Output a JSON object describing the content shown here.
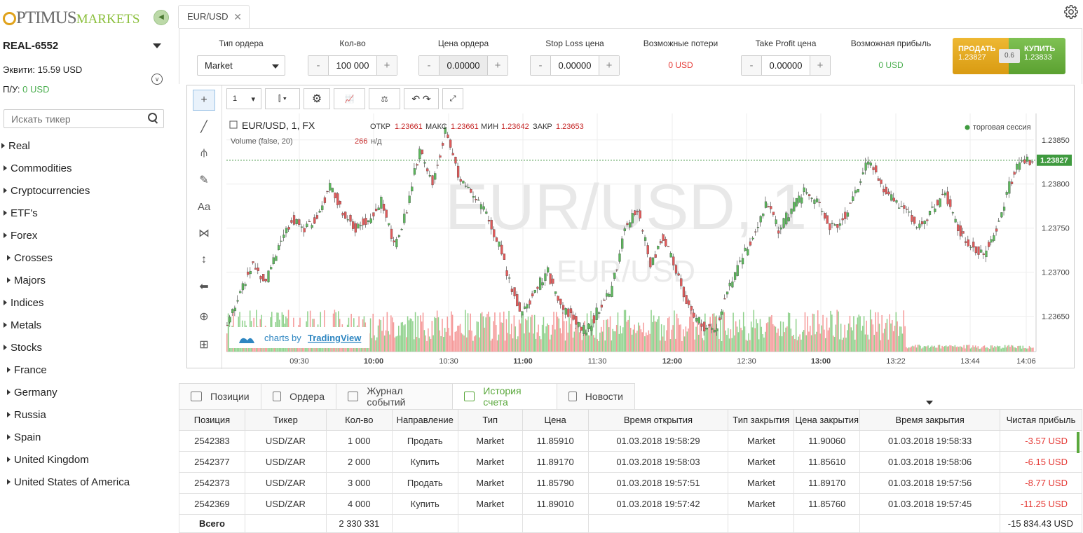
{
  "brand": {
    "logo_part1": "PTIMUS",
    "logo_part2": "MARKETS"
  },
  "account": {
    "name": "REAL-6552",
    "equity_label": "Эквити:",
    "equity_value": "15.59 USD",
    "pnl_label": "П/У:",
    "pnl_value": "0 USD"
  },
  "search": {
    "placeholder": "Искать тикер"
  },
  "tree": [
    {
      "label": "Real",
      "indent": 0
    },
    {
      "label": "Commodities",
      "indent": 1
    },
    {
      "label": "Cryptocurrencies",
      "indent": 1
    },
    {
      "label": "ETF's",
      "indent": 1
    },
    {
      "label": "Forex",
      "indent": 1
    },
    {
      "label": "Crosses",
      "indent": 2
    },
    {
      "label": "Majors",
      "indent": 2
    },
    {
      "label": "Indices",
      "indent": 1
    },
    {
      "label": "Metals",
      "indent": 1
    },
    {
      "label": "Stocks",
      "indent": 1
    },
    {
      "label": "France",
      "indent": 2
    },
    {
      "label": "Germany",
      "indent": 2
    },
    {
      "label": "Russia",
      "indent": 2
    },
    {
      "label": "Spain",
      "indent": 2
    },
    {
      "label": "United Kingdom",
      "indent": 2
    },
    {
      "label": "United States of America",
      "indent": 2
    }
  ],
  "tab": {
    "label": "EUR/USD"
  },
  "order": {
    "type_label": "Тип ордера",
    "type_value": "Market",
    "qty_label": "Кол-во",
    "qty_value": "100 000",
    "price_label": "Цена ордера",
    "price_value": "0.00000",
    "sl_label": "Stop Loss цена",
    "sl_value": "0.00000",
    "loss_label": "Возможные потери",
    "loss_value": "0 USD",
    "tp_label": "Take Profit цена",
    "tp_value": "0.00000",
    "profit_label": "Возможная прибыль",
    "profit_value": "0 USD",
    "sell_label": "ПРОДАТЬ",
    "sell_price": "1.23827",
    "buy_label": "КУПИТЬ",
    "buy_price": "1.23833",
    "spread": "0.6",
    "minus": "-",
    "plus": "+"
  },
  "chart_toolbar": {
    "interval": "1"
  },
  "chart_data": {
    "type": "candlestick",
    "symbol_line": "EUR/USD, 1, FX",
    "ohlc": {
      "o_label": "ОТКР",
      "o": "1.23661",
      "h_label": "МАКС",
      "h": "1.23661",
      "l_label": "МИН",
      "l": "1.23642",
      "c_label": "ЗАКР",
      "c": "1.23653"
    },
    "volume_line": "Volume (false, 20)",
    "volume_value": "266",
    "volume_na": "н/д",
    "session": "торговая сессия",
    "watermark_big": "EUR/USD, 1",
    "watermark_small": "EUR/USD",
    "branding_prefix": "charts by",
    "branding_name": "TradingView",
    "last_price": "1.23827",
    "ylim": [
      1.2361,
      1.2388
    ],
    "yticks": [
      "1.23850",
      "1.23800",
      "1.23750",
      "1.23700",
      "1.23650"
    ],
    "xticks": [
      "09:30",
      "10:00",
      "10:30",
      "11:00",
      "11:30",
      "12:00",
      "12:30",
      "13:00",
      "13:22",
      "13:44",
      "14:06"
    ],
    "bold_xticks": [
      "10:00",
      "11:00",
      "12:00",
      "13:00"
    ],
    "close_path": [
      [
        0,
        1.2364
      ],
      [
        10,
        1.2368
      ],
      [
        20,
        1.2371
      ],
      [
        30,
        1.2369
      ],
      [
        40,
        1.2373
      ],
      [
        50,
        1.2376
      ],
      [
        60,
        1.2375
      ],
      [
        70,
        1.2376
      ],
      [
        80,
        1.238
      ],
      [
        90,
        1.2377
      ],
      [
        100,
        1.2375
      ],
      [
        110,
        1.2376
      ],
      [
        120,
        1.2378
      ],
      [
        130,
        1.2373
      ],
      [
        140,
        1.2377
      ],
      [
        150,
        1.2384
      ],
      [
        160,
        1.238
      ],
      [
        170,
        1.2386
      ],
      [
        180,
        1.2381
      ],
      [
        190,
        1.2379
      ],
      [
        200,
        1.2377
      ],
      [
        210,
        1.2374
      ],
      [
        220,
        1.2369
      ],
      [
        230,
        1.2365
      ],
      [
        240,
        1.2368
      ],
      [
        250,
        1.237
      ],
      [
        260,
        1.2366
      ],
      [
        270,
        1.2365
      ],
      [
        280,
        1.2363
      ],
      [
        290,
        1.2366
      ],
      [
        300,
        1.2368
      ],
      [
        310,
        1.2375
      ],
      [
        320,
        1.2377
      ],
      [
        330,
        1.2371
      ],
      [
        340,
        1.2374
      ],
      [
        350,
        1.237
      ],
      [
        360,
        1.2366
      ],
      [
        370,
        1.2364
      ],
      [
        380,
        1.2363
      ],
      [
        390,
        1.2368
      ],
      [
        400,
        1.2371
      ],
      [
        410,
        1.2374
      ],
      [
        420,
        1.2378
      ],
      [
        430,
        1.2375
      ],
      [
        440,
        1.2377
      ],
      [
        450,
        1.2379
      ],
      [
        460,
        1.2378
      ],
      [
        470,
        1.2375
      ],
      [
        480,
        1.2376
      ],
      [
        490,
        1.2379
      ],
      [
        500,
        1.2383
      ],
      [
        510,
        1.238
      ],
      [
        520,
        1.2378
      ],
      [
        530,
        1.2377
      ],
      [
        540,
        1.2375
      ],
      [
        550,
        1.2377
      ],
      [
        560,
        1.2379
      ],
      [
        570,
        1.2375
      ],
      [
        580,
        1.2373
      ],
      [
        590,
        1.2372
      ],
      [
        600,
        1.2375
      ],
      [
        610,
        1.238
      ],
      [
        620,
        1.2383
      ],
      [
        630,
        1.2382
      ]
    ]
  },
  "bottom_tabs": [
    "Позиции",
    "Ордера",
    "Журнал событий",
    "История счета",
    "Новости"
  ],
  "table": {
    "columns": [
      "Позиция",
      "Тикер",
      "Кол-во",
      "Направление",
      "Тип",
      "Цена",
      "Время открытия",
      "Тип закрытия",
      "Цена закрытия",
      "Время закрытия",
      "Чистая прибыль"
    ],
    "rows": [
      [
        "2542383",
        "USD/ZAR",
        "1 000",
        "Продать",
        "Market",
        "11.85910",
        "01.03.2018 19:58:29",
        "Market",
        "11.90060",
        "01.03.2018 19:58:33",
        "-3.57 USD"
      ],
      [
        "2542377",
        "USD/ZAR",
        "2 000",
        "Купить",
        "Market",
        "11.89170",
        "01.03.2018 19:58:03",
        "Market",
        "11.85610",
        "01.03.2018 19:58:06",
        "-6.15 USD"
      ],
      [
        "2542373",
        "USD/ZAR",
        "3 000",
        "Продать",
        "Market",
        "11.85790",
        "01.03.2018 19:57:51",
        "Market",
        "11.89170",
        "01.03.2018 19:57:56",
        "-8.77 USD"
      ],
      [
        "2542369",
        "USD/ZAR",
        "4 000",
        "Купить",
        "Market",
        "11.89010",
        "01.03.2018 19:57:42",
        "Market",
        "11.85760",
        "01.03.2018 19:57:45",
        "-11.25 USD"
      ]
    ],
    "total_label": "Всего",
    "total_qty": "2 330 331",
    "total_profit": "-15 834.43 USD"
  },
  "colors": {
    "up": "#5cb85c",
    "down": "#e15a5a",
    "vol_up": "#8fd18c",
    "vol_down": "#f59a9a",
    "accent": "#5aa83c"
  }
}
